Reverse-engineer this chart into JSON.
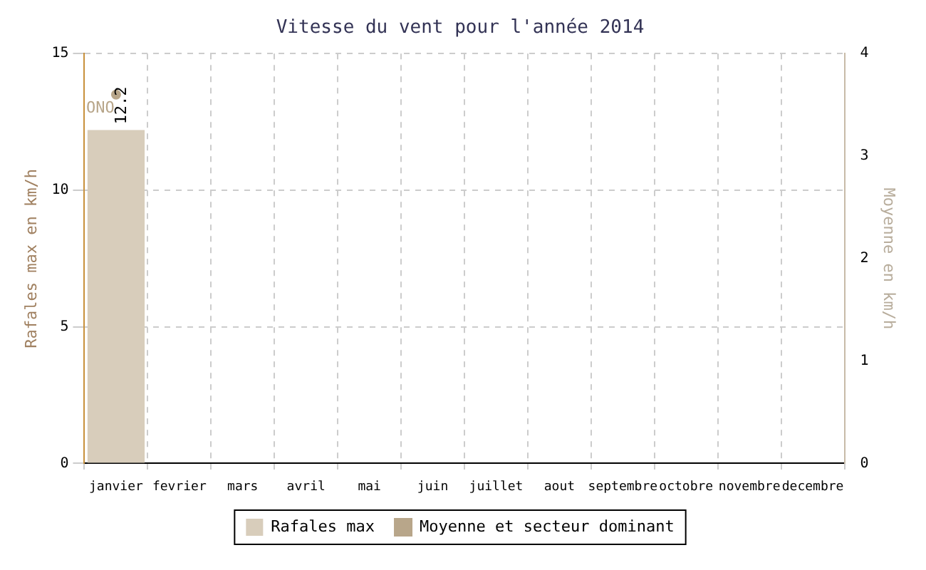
{
  "chart_data": {
    "type": "bar",
    "title": "Vitesse du vent pour l'année 2014",
    "ylabel": "Rafales max en km/h",
    "y2label": "Moyenne en km/h",
    "categories": [
      "janvier",
      "fevrier",
      "mars",
      "avril",
      "mai",
      "juin",
      "juillet",
      "aout",
      "septembre",
      "octobre",
      "novembre",
      "decembre"
    ],
    "series": [
      {
        "name": "Rafales max",
        "color": "#d8cdbb",
        "values": [
          12.2,
          null,
          null,
          null,
          null,
          null,
          null,
          null,
          null,
          null,
          null,
          null
        ],
        "value_labels": [
          "12.2",
          null,
          null,
          null,
          null,
          null,
          null,
          null,
          null,
          null,
          null,
          null
        ]
      },
      {
        "name": "Moyenne et secteur dominant",
        "type": "line",
        "axis": "y2",
        "color": "#b8a68a",
        "values": [
          3.6,
          null,
          null,
          null,
          null,
          null,
          null,
          null,
          null,
          null,
          null,
          null
        ],
        "value_labels": [
          "ONO",
          null,
          null,
          null,
          null,
          null,
          null,
          null,
          null,
          null,
          null,
          null
        ]
      }
    ],
    "ylim": [
      0,
      15
    ],
    "yticks": [
      0,
      5,
      10,
      15
    ],
    "y2lim": [
      0,
      4
    ],
    "y2ticks": [
      0,
      1,
      2,
      3,
      4
    ],
    "grid": true,
    "legend": "bottom",
    "marker": "circle"
  }
}
